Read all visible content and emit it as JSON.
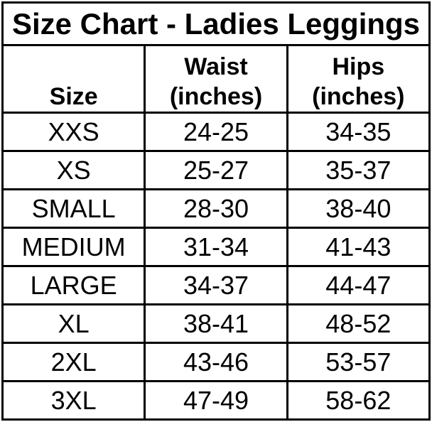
{
  "colors": {
    "background": "#ffffff",
    "text": "#000000",
    "border": "#000000"
  },
  "chart_data": {
    "type": "table",
    "title": "Size Chart - Ladies Leggings",
    "columns": [
      "Size",
      "Waist (inches)",
      "Hips (inches)"
    ],
    "rows": [
      [
        "XXS",
        "24-25",
        "34-35"
      ],
      [
        "XS",
        "25-27",
        "35-37"
      ],
      [
        "SMALL",
        "28-30",
        "38-40"
      ],
      [
        "MEDIUM",
        "31-34",
        "41-43"
      ],
      [
        "LARGE",
        "34-37",
        "44-47"
      ],
      [
        "XL",
        "38-41",
        "48-52"
      ],
      [
        "2XL",
        "43-46",
        "53-57"
      ],
      [
        "3XL",
        "47-49",
        "58-62"
      ]
    ]
  }
}
